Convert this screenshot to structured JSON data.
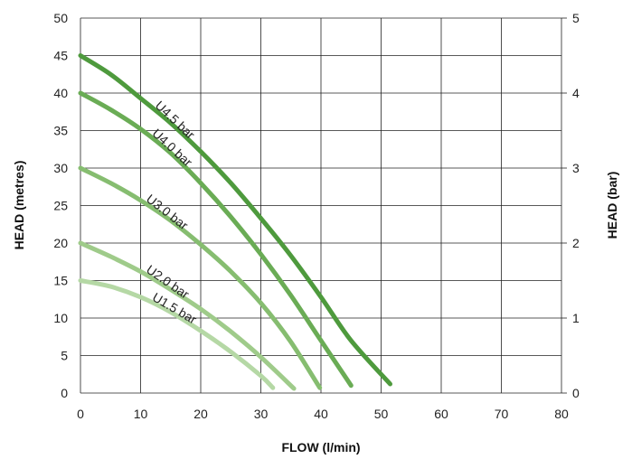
{
  "chart_data": {
    "type": "line",
    "title": "",
    "xlabel": "FLOW (l/min)",
    "ylabel": "HEAD (metres)",
    "y2label": "HEAD (bar)",
    "xlim": [
      0,
      80
    ],
    "ylim": [
      0,
      50
    ],
    "y2lim": [
      0,
      5
    ],
    "x_ticks": [
      0,
      10,
      20,
      30,
      40,
      50,
      60,
      70,
      80
    ],
    "y_ticks": [
      0,
      5,
      10,
      15,
      20,
      25,
      30,
      35,
      40,
      45,
      50
    ],
    "y2_ticks": [
      0,
      1,
      2,
      3,
      4,
      5
    ],
    "grid": true,
    "series": [
      {
        "name": "U1.5 bar",
        "color": "#b5d8a5",
        "x": [
          0,
          5,
          10,
          15,
          20,
          25,
          30,
          32
        ],
        "y": [
          15,
          14.2,
          12.8,
          10.8,
          8.3,
          5.5,
          2.3,
          0.7
        ]
      },
      {
        "name": "U2.0 bar",
        "color": "#9fcb8a",
        "x": [
          0,
          5,
          10,
          15,
          20,
          25,
          30,
          35.5
        ],
        "y": [
          20,
          18.2,
          16.2,
          13.8,
          11.2,
          8.2,
          4.8,
          0.6
        ]
      },
      {
        "name": "U3.0 bar",
        "color": "#86bd70",
        "x": [
          0,
          5,
          10,
          15,
          20,
          25,
          30,
          35,
          39.8
        ],
        "y": [
          30,
          28,
          25.7,
          23,
          19.8,
          16.2,
          12,
          6.8,
          0.7
        ]
      },
      {
        "name": "U4.0 bar",
        "color": "#6aac55",
        "x": [
          0,
          5,
          10,
          15,
          20,
          25,
          30,
          35,
          40,
          45
        ],
        "y": [
          40,
          37.8,
          35.2,
          32,
          28,
          23.5,
          18.5,
          13,
          7,
          1
        ]
      },
      {
        "name": "U4.5 bar",
        "color": "#4e9a3d",
        "x": [
          0,
          5,
          10,
          15,
          20,
          25,
          30,
          35,
          40,
          45,
          51.5
        ],
        "y": [
          45,
          42.5,
          39.3,
          36,
          32.2,
          28,
          23.3,
          18.3,
          12.8,
          7,
          1.2
        ]
      }
    ]
  }
}
